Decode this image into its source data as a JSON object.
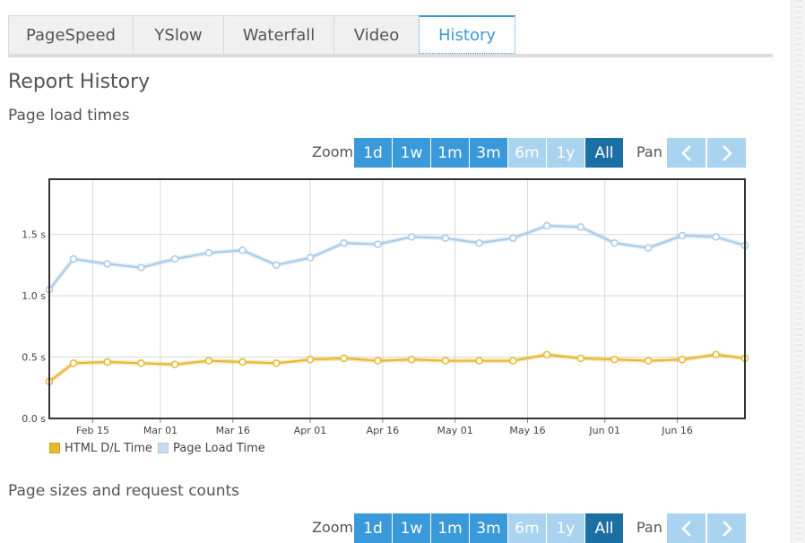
{
  "tabs": [
    {
      "label": "PageSpeed",
      "active": false
    },
    {
      "label": "YSlow",
      "active": false
    },
    {
      "label": "Waterfall",
      "active": false
    },
    {
      "label": "Video",
      "active": false
    },
    {
      "label": "History",
      "active": true
    }
  ],
  "page_title": "Report History",
  "section1": {
    "title": "Page load times",
    "zoom_label": "Zoom",
    "pan_label": "Pan",
    "zoom_options": [
      "1d",
      "1w",
      "1m",
      "3m",
      "6m",
      "1y",
      "All"
    ],
    "zoom_selected": "All",
    "zoom_disabled": [
      "6m",
      "1y"
    ]
  },
  "section2": {
    "title": "Page sizes and request counts",
    "zoom_label": "Zoom",
    "pan_label": "Pan",
    "zoom_options": [
      "1d",
      "1w",
      "1m",
      "3m",
      "6m",
      "1y",
      "All"
    ],
    "zoom_selected": "All",
    "zoom_disabled": [
      "6m",
      "1y"
    ]
  },
  "colors": {
    "accent": "#3a9ad9",
    "accent_selected": "#1b6fa3",
    "accent_disabled": "#a9d3ef",
    "html_series": "#e8b830",
    "page_series": "#a8cbe8"
  },
  "icons": {
    "pan_left": "chevron-left-icon",
    "pan_right": "chevron-right-icon"
  },
  "chart_data": {
    "type": "line",
    "x_type": "date",
    "x_ticks": [
      "Feb 15",
      "Mar 01",
      "Mar 16",
      "Apr 01",
      "Apr 16",
      "May 01",
      "May 16",
      "Jun 01",
      "Jun 16"
    ],
    "y_ticks": [
      "0.0 s",
      "0.5 s",
      "1.0 s",
      "1.5 s"
    ],
    "ylim": [
      0,
      1.95
    ],
    "xlim": [
      "2014-02-06",
      "2014-06-30"
    ],
    "grid": true,
    "legend_position": "bottom-left",
    "x": [
      "2014-02-06",
      "2014-02-11",
      "2014-02-18",
      "2014-02-25",
      "2014-03-04",
      "2014-03-11",
      "2014-03-18",
      "2014-03-25",
      "2014-04-01",
      "2014-04-08",
      "2014-04-15",
      "2014-04-22",
      "2014-04-29",
      "2014-05-06",
      "2014-05-13",
      "2014-05-20",
      "2014-05-27",
      "2014-06-03",
      "2014-06-10",
      "2014-06-17",
      "2014-06-24",
      "2014-06-30"
    ],
    "series": [
      {
        "name": "HTML D/L Time",
        "color": "#e8b830",
        "values": [
          0.3,
          0.45,
          0.46,
          0.45,
          0.44,
          0.47,
          0.46,
          0.45,
          0.48,
          0.49,
          0.47,
          0.48,
          0.47,
          0.47,
          0.47,
          0.52,
          0.49,
          0.48,
          0.47,
          0.48,
          0.52,
          0.49
        ]
      },
      {
        "name": "Page Load Time",
        "color": "#a8cbe8",
        "values": [
          1.05,
          1.3,
          1.26,
          1.23,
          1.3,
          1.35,
          1.37,
          1.25,
          1.31,
          1.43,
          1.42,
          1.48,
          1.47,
          1.43,
          1.47,
          1.57,
          1.56,
          1.43,
          1.39,
          1.49,
          1.48,
          1.41
        ]
      }
    ]
  }
}
